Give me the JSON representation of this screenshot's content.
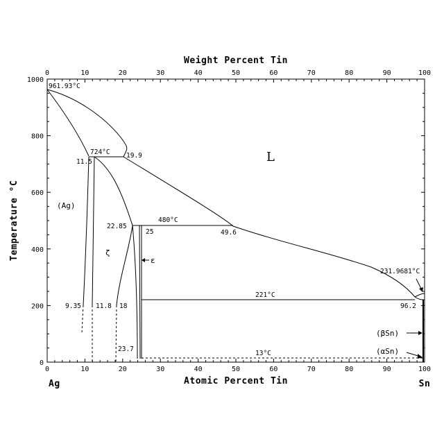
{
  "diagram": {
    "top_axis_title": "Weight Percent Tin",
    "bottom_axis_title": "Atomic Percent Tin",
    "left_axis_title": "Temperature °C",
    "x_ticks": [
      "0",
      "10",
      "20",
      "30",
      "40",
      "50",
      "60",
      "70",
      "80",
      "90",
      "100"
    ],
    "top_ticks": [
      "0",
      "10",
      "20",
      "30",
      "40",
      "50",
      "60",
      "70",
      "80",
      "90",
      "100"
    ],
    "y_ticks": [
      "0",
      "200",
      "400",
      "600",
      "800",
      "1000"
    ],
    "corner_left": "Ag",
    "corner_right": "Sn",
    "labels": {
      "ag_melt": "961.93°C",
      "peritectic_724": "724°C",
      "comp_11_5": "11.5",
      "comp_19_9": "19.9",
      "liquid": "L",
      "ag_phase": "(Ag)",
      "comp_22_85": "22.85",
      "peritectic_480": "480°C",
      "comp_25": "25",
      "comp_49_6": "49.6",
      "zeta": "ζ",
      "epsilon": "ε",
      "sn_melt": "231.9681°C",
      "eutectic_221": "221°C",
      "comp_96_2": "96.2",
      "comp_9_35": "9.35",
      "comp_11_8": "11.8",
      "comp_18": "18",
      "comp_23_7": "23.7",
      "beta_sn": "(βSn)",
      "alpha_sn": "(αSn)",
      "transition_13": "13°C"
    }
  }
}
